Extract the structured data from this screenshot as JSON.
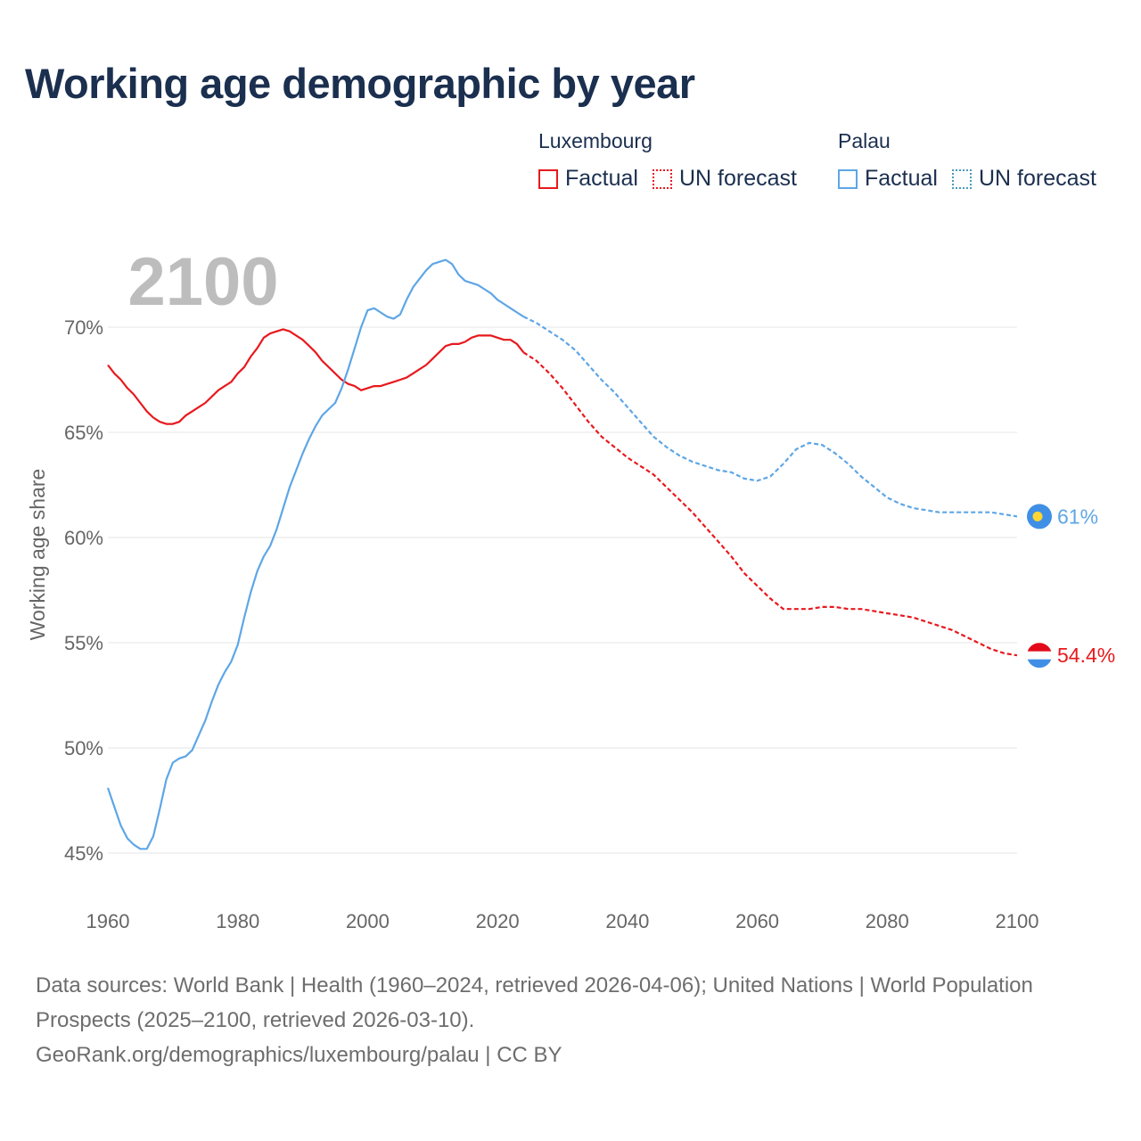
{
  "title": "Working age demographic by year",
  "legend": {
    "group1": {
      "name": "Luxembourg",
      "factual": "Factual",
      "forecast": "UN forecast"
    },
    "group2": {
      "name": "Palau",
      "factual": "Factual",
      "forecast": "UN forecast"
    }
  },
  "footer": {
    "sources": "Data sources: World Bank | Health (1960–2024, retrieved 2026-04-06); United Nations | World Population Prospects (2025–2100, retrieved 2026-03-10).",
    "url": "GeoRank.org/demographics/luxembourg/palau | CC BY"
  },
  "colors": {
    "luxembourg": "#e8191e",
    "palau": "#5ea6e6",
    "grid": "#e6e6e6",
    "axis_text": "#666666",
    "year_watermark": "#bdbdbd"
  },
  "chart_data": {
    "type": "line",
    "year_label": "2100",
    "ylabel": "Working age share",
    "xlim": [
      1960,
      2100
    ],
    "ylim": [
      45,
      70
    ],
    "x_ticks": [
      "1960",
      "1980",
      "2000",
      "2020",
      "2040",
      "2060",
      "2080",
      "2100"
    ],
    "y_ticks": [
      "70%",
      "65%",
      "60%",
      "55%",
      "50%",
      "45%"
    ],
    "y_tick_values": [
      70,
      65,
      60,
      55,
      50,
      45
    ],
    "series": [
      {
        "name": "Luxembourg",
        "end_label": "54.4%",
        "factual": {
          "x": [
            1960,
            1961,
            1962,
            1963,
            1964,
            1965,
            1966,
            1967,
            1968,
            1969,
            1970,
            1971,
            1972,
            1973,
            1974,
            1975,
            1976,
            1977,
            1978,
            1979,
            1980,
            1981,
            1982,
            1983,
            1984,
            1985,
            1986,
            1987,
            1988,
            1989,
            1990,
            1991,
            1992,
            1993,
            1994,
            1995,
            1996,
            1997,
            1998,
            1999,
            2000,
            2001,
            2002,
            2003,
            2004,
            2005,
            2006,
            2007,
            2008,
            2009,
            2010,
            2011,
            2012,
            2013,
            2014,
            2015,
            2016,
            2017,
            2018,
            2019,
            2020,
            2021,
            2022,
            2023,
            2024
          ],
          "y": [
            68.2,
            67.8,
            67.5,
            67.1,
            66.8,
            66.4,
            66.0,
            65.7,
            65.5,
            65.4,
            65.4,
            65.5,
            65.8,
            66.0,
            66.2,
            66.4,
            66.7,
            67.0,
            67.2,
            67.4,
            67.8,
            68.1,
            68.6,
            69.0,
            69.5,
            69.7,
            69.8,
            69.9,
            69.8,
            69.6,
            69.4,
            69.1,
            68.8,
            68.4,
            68.1,
            67.8,
            67.5,
            67.3,
            67.2,
            67.0,
            67.1,
            67.2,
            67.2,
            67.3,
            67.4,
            67.5,
            67.6,
            67.8,
            68.0,
            68.2,
            68.5,
            68.8,
            69.1,
            69.2,
            69.2,
            69.3,
            69.5,
            69.6,
            69.6,
            69.6,
            69.5,
            69.4,
            69.4,
            69.2,
            68.8
          ]
        },
        "forecast": {
          "x": [
            2024,
            2026,
            2028,
            2030,
            2032,
            2034,
            2036,
            2038,
            2040,
            2042,
            2044,
            2046,
            2048,
            2050,
            2052,
            2054,
            2056,
            2058,
            2060,
            2062,
            2064,
            2066,
            2068,
            2070,
            2072,
            2074,
            2076,
            2078,
            2080,
            2082,
            2084,
            2086,
            2088,
            2090,
            2092,
            2094,
            2096,
            2098,
            2100
          ],
          "y": [
            68.8,
            68.4,
            67.8,
            67.1,
            66.3,
            65.5,
            64.8,
            64.3,
            63.8,
            63.4,
            63.0,
            62.4,
            61.8,
            61.2,
            60.5,
            59.8,
            59.1,
            58.3,
            57.7,
            57.1,
            56.6,
            56.6,
            56.6,
            56.7,
            56.7,
            56.6,
            56.6,
            56.5,
            56.4,
            56.3,
            56.2,
            56.0,
            55.8,
            55.6,
            55.3,
            55.0,
            54.7,
            54.5,
            54.4
          ]
        }
      },
      {
        "name": "Palau",
        "end_label": "61%",
        "factual": {
          "x": [
            1960,
            1961,
            1962,
            1963,
            1964,
            1965,
            1966,
            1967,
            1968,
            1969,
            1970,
            1971,
            1972,
            1973,
            1974,
            1975,
            1976,
            1977,
            1978,
            1979,
            1980,
            1981,
            1982,
            1983,
            1984,
            1985,
            1986,
            1987,
            1988,
            1989,
            1990,
            1991,
            1992,
            1993,
            1994,
            1995,
            1996,
            1997,
            1998,
            1999,
            2000,
            2001,
            2002,
            2003,
            2004,
            2005,
            2006,
            2007,
            2008,
            2009,
            2010,
            2011,
            2012,
            2013,
            2014,
            2015,
            2016,
            2017,
            2018,
            2019,
            2020,
            2021,
            2022,
            2023,
            2024
          ],
          "y": [
            48.1,
            47.2,
            46.3,
            45.7,
            45.4,
            45.2,
            45.2,
            45.8,
            47.1,
            48.5,
            49.3,
            49.5,
            49.6,
            49.9,
            50.6,
            51.3,
            52.2,
            53.0,
            53.6,
            54.1,
            54.9,
            56.2,
            57.4,
            58.4,
            59.1,
            59.6,
            60.4,
            61.4,
            62.4,
            63.2,
            64.0,
            64.7,
            65.3,
            65.8,
            66.1,
            66.4,
            67.1,
            68.0,
            69.0,
            70.0,
            70.8,
            70.9,
            70.7,
            70.5,
            70.4,
            70.6,
            71.3,
            71.9,
            72.3,
            72.7,
            73.0,
            73.1,
            73.2,
            73.0,
            72.5,
            72.2,
            72.1,
            72.0,
            71.8,
            71.6,
            71.3,
            71.1,
            70.9,
            70.7,
            70.5
          ]
        },
        "forecast": {
          "x": [
            2024,
            2026,
            2028,
            2030,
            2032,
            2034,
            2036,
            2038,
            2040,
            2042,
            2044,
            2046,
            2048,
            2050,
            2052,
            2054,
            2056,
            2058,
            2060,
            2062,
            2064,
            2066,
            2068,
            2070,
            2072,
            2074,
            2076,
            2078,
            2080,
            2082,
            2084,
            2086,
            2088,
            2090,
            2092,
            2094,
            2096,
            2098,
            2100
          ],
          "y": [
            70.5,
            70.2,
            69.8,
            69.4,
            68.9,
            68.2,
            67.5,
            66.9,
            66.2,
            65.5,
            64.8,
            64.3,
            63.9,
            63.6,
            63.4,
            63.2,
            63.1,
            62.8,
            62.7,
            62.9,
            63.5,
            64.2,
            64.5,
            64.4,
            64.0,
            63.5,
            62.9,
            62.4,
            61.9,
            61.6,
            61.4,
            61.3,
            61.2,
            61.2,
            61.2,
            61.2,
            61.2,
            61.1,
            61.0
          ]
        }
      }
    ]
  }
}
